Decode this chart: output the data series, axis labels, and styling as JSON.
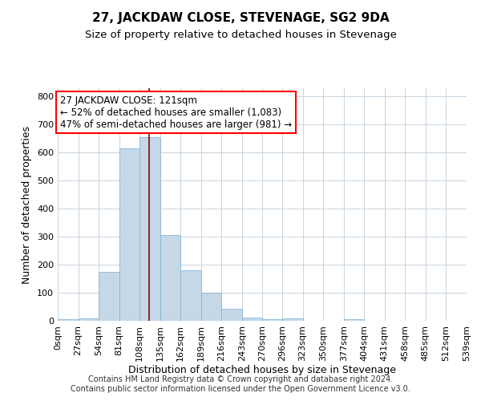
{
  "title": "27, JACKDAW CLOSE, STEVENAGE, SG2 9DA",
  "subtitle": "Size of property relative to detached houses in Stevenage",
  "xlabel": "Distribution of detached houses by size in Stevenage",
  "ylabel": "Number of detached properties",
  "bar_color": "#c5d8e8",
  "bar_edge_color": "#7bafd4",
  "grid_color": "#c8d4e0",
  "background_color": "#ffffff",
  "property_line_color": "#8b0000",
  "bin_edges": [
    0,
    27,
    54,
    81,
    108,
    135,
    162,
    189,
    216,
    243,
    270,
    296,
    323,
    350,
    377,
    404,
    431,
    458,
    485,
    512,
    539
  ],
  "bar_heights": [
    5,
    10,
    175,
    615,
    655,
    305,
    180,
    100,
    42,
    12,
    7,
    8,
    0,
    0,
    5,
    0,
    0,
    0,
    0,
    0
  ],
  "xlim": [
    0,
    539
  ],
  "ylim": [
    0,
    830
  ],
  "yticks": [
    0,
    100,
    200,
    300,
    400,
    500,
    600,
    700,
    800
  ],
  "property_size": 121,
  "annotation_text_line1": "27 JACKDAW CLOSE: 121sqm",
  "annotation_text_line2": "← 52% of detached houses are smaller (1,083)",
  "annotation_text_line3": "47% of semi-detached houses are larger (981) →",
  "footer_line1": "Contains HM Land Registry data © Crown copyright and database right 2024.",
  "footer_line2": "Contains public sector information licensed under the Open Government Licence v3.0.",
  "title_fontsize": 11,
  "subtitle_fontsize": 9.5,
  "axis_label_fontsize": 9,
  "tick_fontsize": 8,
  "annotation_fontsize": 8.5,
  "footer_fontsize": 7
}
